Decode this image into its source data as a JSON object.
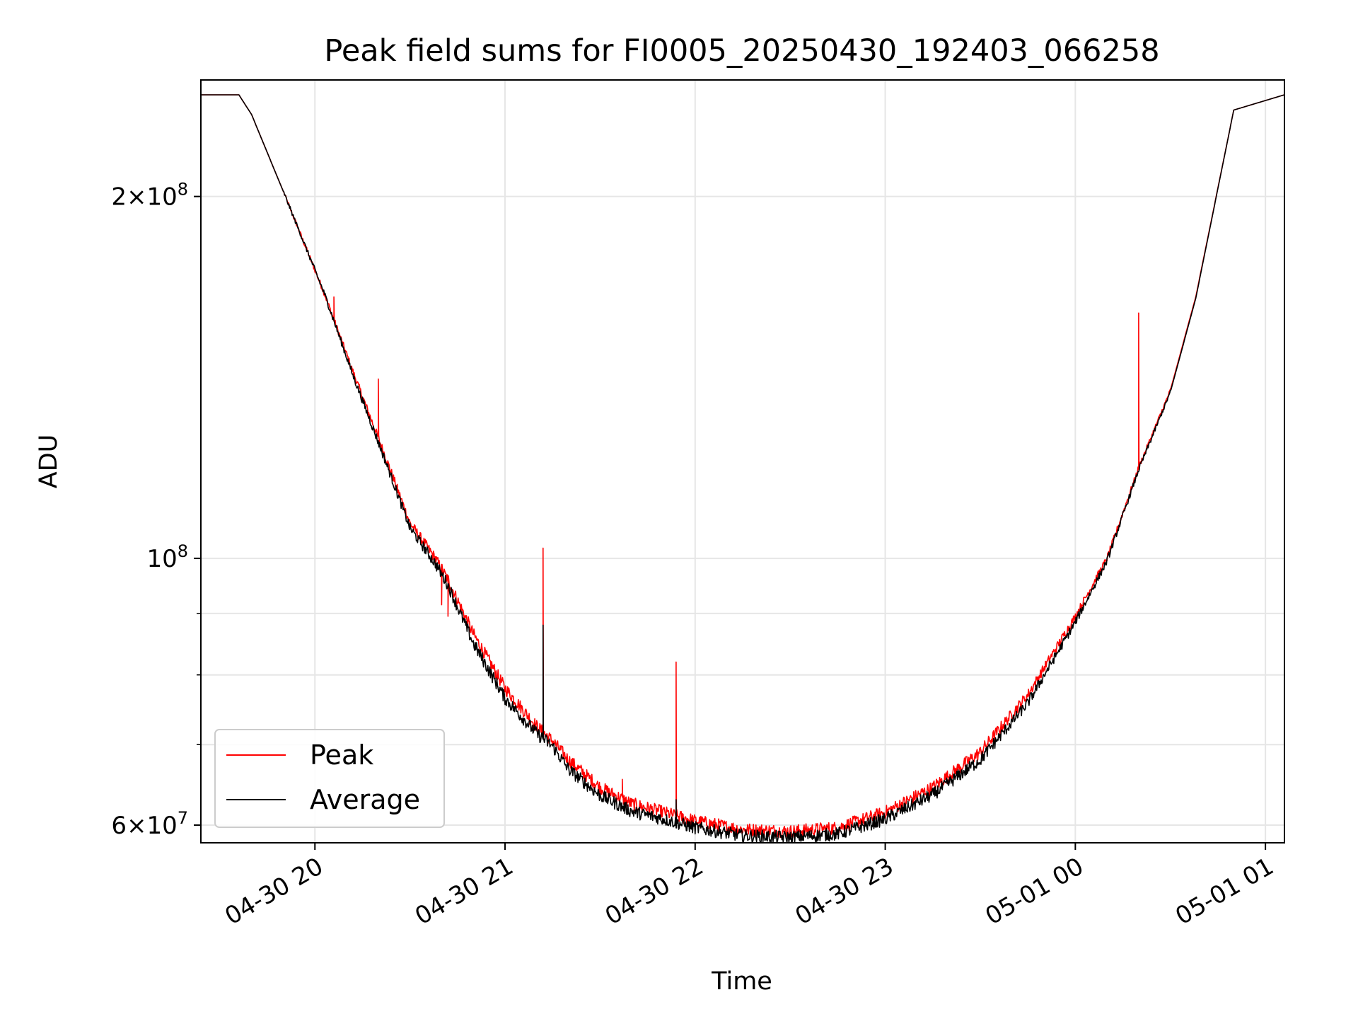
{
  "chart_data": {
    "type": "line",
    "title": "Peak field sums for FI0005_20250430_192403_066258",
    "xlabel": "Time",
    "ylabel": "ADU",
    "x_axis_type": "datetime",
    "y_scale": "log",
    "xlim": [
      "2025-04-30 19:24",
      "2025-05-01 01:06"
    ],
    "ylim": [
      58000000,
      250000000
    ],
    "grid": true,
    "legend_position": "lower-left",
    "x_ticks": [
      {
        "time": "2025-04-30 20:00",
        "label": "04-30 20"
      },
      {
        "time": "2025-04-30 21:00",
        "label": "04-30 21"
      },
      {
        "time": "2025-04-30 22:00",
        "label": "04-30 22"
      },
      {
        "time": "2025-04-30 23:00",
        "label": "04-30 23"
      },
      {
        "time": "2025-05-01 00:00",
        "label": "05-01 00"
      },
      {
        "time": "2025-05-01 01:00",
        "label": "05-01 01"
      }
    ],
    "y_major_ticks": [
      {
        "value": 60000000,
        "mantissa": "6",
        "exponent": "7"
      },
      {
        "value": 100000000,
        "mantissa": "",
        "exponent": "8"
      },
      {
        "value": 200000000,
        "mantissa": "2",
        "exponent": "8"
      }
    ],
    "y_minor_ticks": [
      70000000,
      80000000,
      90000000
    ],
    "times_sample_points": [
      "2025-04-30 19:24",
      "2025-04-30 19:36",
      "2025-04-30 19:40",
      "2025-04-30 19:50",
      "2025-04-30 20:03",
      "2025-04-30 20:12",
      "2025-04-30 20:22",
      "2025-04-30 20:30",
      "2025-04-30 20:38",
      "2025-04-30 20:42",
      "2025-04-30 20:50",
      "2025-04-30 21:00",
      "2025-04-30 21:10",
      "2025-04-30 21:15",
      "2025-04-30 21:20",
      "2025-04-30 21:30",
      "2025-04-30 21:40",
      "2025-04-30 21:50",
      "2025-04-30 22:00",
      "2025-04-30 22:15",
      "2025-04-30 22:30",
      "2025-04-30 22:45",
      "2025-04-30 23:00",
      "2025-04-30 23:15",
      "2025-04-30 23:30",
      "2025-04-30 23:45",
      "2025-05-01 00:00",
      "2025-05-01 00:10",
      "2025-05-01 00:20",
      "2025-05-01 00:30",
      "2025-05-01 00:38",
      "2025-05-01 00:50",
      "2025-05-01 01:06"
    ],
    "series": [
      {
        "name": "Peak",
        "color": "#ff0000",
        "values": [
          243000000,
          243000000,
          234000000,
          202000000,
          166000000,
          143000000,
          122000000,
          107000000,
          100000000,
          96000000,
          86500000,
          78000000,
          72500000,
          70500000,
          68000000,
          64500000,
          62500000,
          61500000,
          60500000,
          59500000,
          59300000,
          59700000,
          61500000,
          64500000,
          69000000,
          77000000,
          89500000,
          100000000,
          119000000,
          138000000,
          165000000,
          236000000,
          243000000
        ],
        "spikes": [
          {
            "time": "2025-04-30 20:06",
            "value": 165000000
          },
          {
            "time": "2025-04-30 20:20",
            "value": 141000000
          },
          {
            "time": "2025-04-30 20:40",
            "value": 91500000
          },
          {
            "time": "2025-04-30 20:42",
            "value": 89500000
          },
          {
            "time": "2025-04-30 21:12",
            "value": 102000000
          },
          {
            "time": "2025-04-30 21:37",
            "value": 65500000
          },
          {
            "time": "2025-04-30 21:54",
            "value": 82000000
          },
          {
            "time": "2025-05-01 00:20",
            "value": 160000000
          }
        ]
      },
      {
        "name": "Average",
        "color": "#000000",
        "values": [
          243000000,
          243000000,
          234000000,
          202000000,
          166000000,
          142000000,
          121000000,
          106000000,
          99000000,
          95000000,
          85000000,
          76500000,
          71500000,
          69800000,
          66800000,
          63500000,
          61600000,
          60700000,
          59700000,
          58800000,
          58600000,
          59000000,
          60700000,
          63600000,
          68000000,
          75800000,
          88500000,
          99500000,
          118500000,
          137500000,
          164500000,
          236000000,
          243000000
        ],
        "spikes": [
          {
            "time": "2025-04-30 21:12",
            "value": 88000000
          },
          {
            "time": "2025-04-30 21:54",
            "value": 63000000
          }
        ]
      }
    ]
  }
}
